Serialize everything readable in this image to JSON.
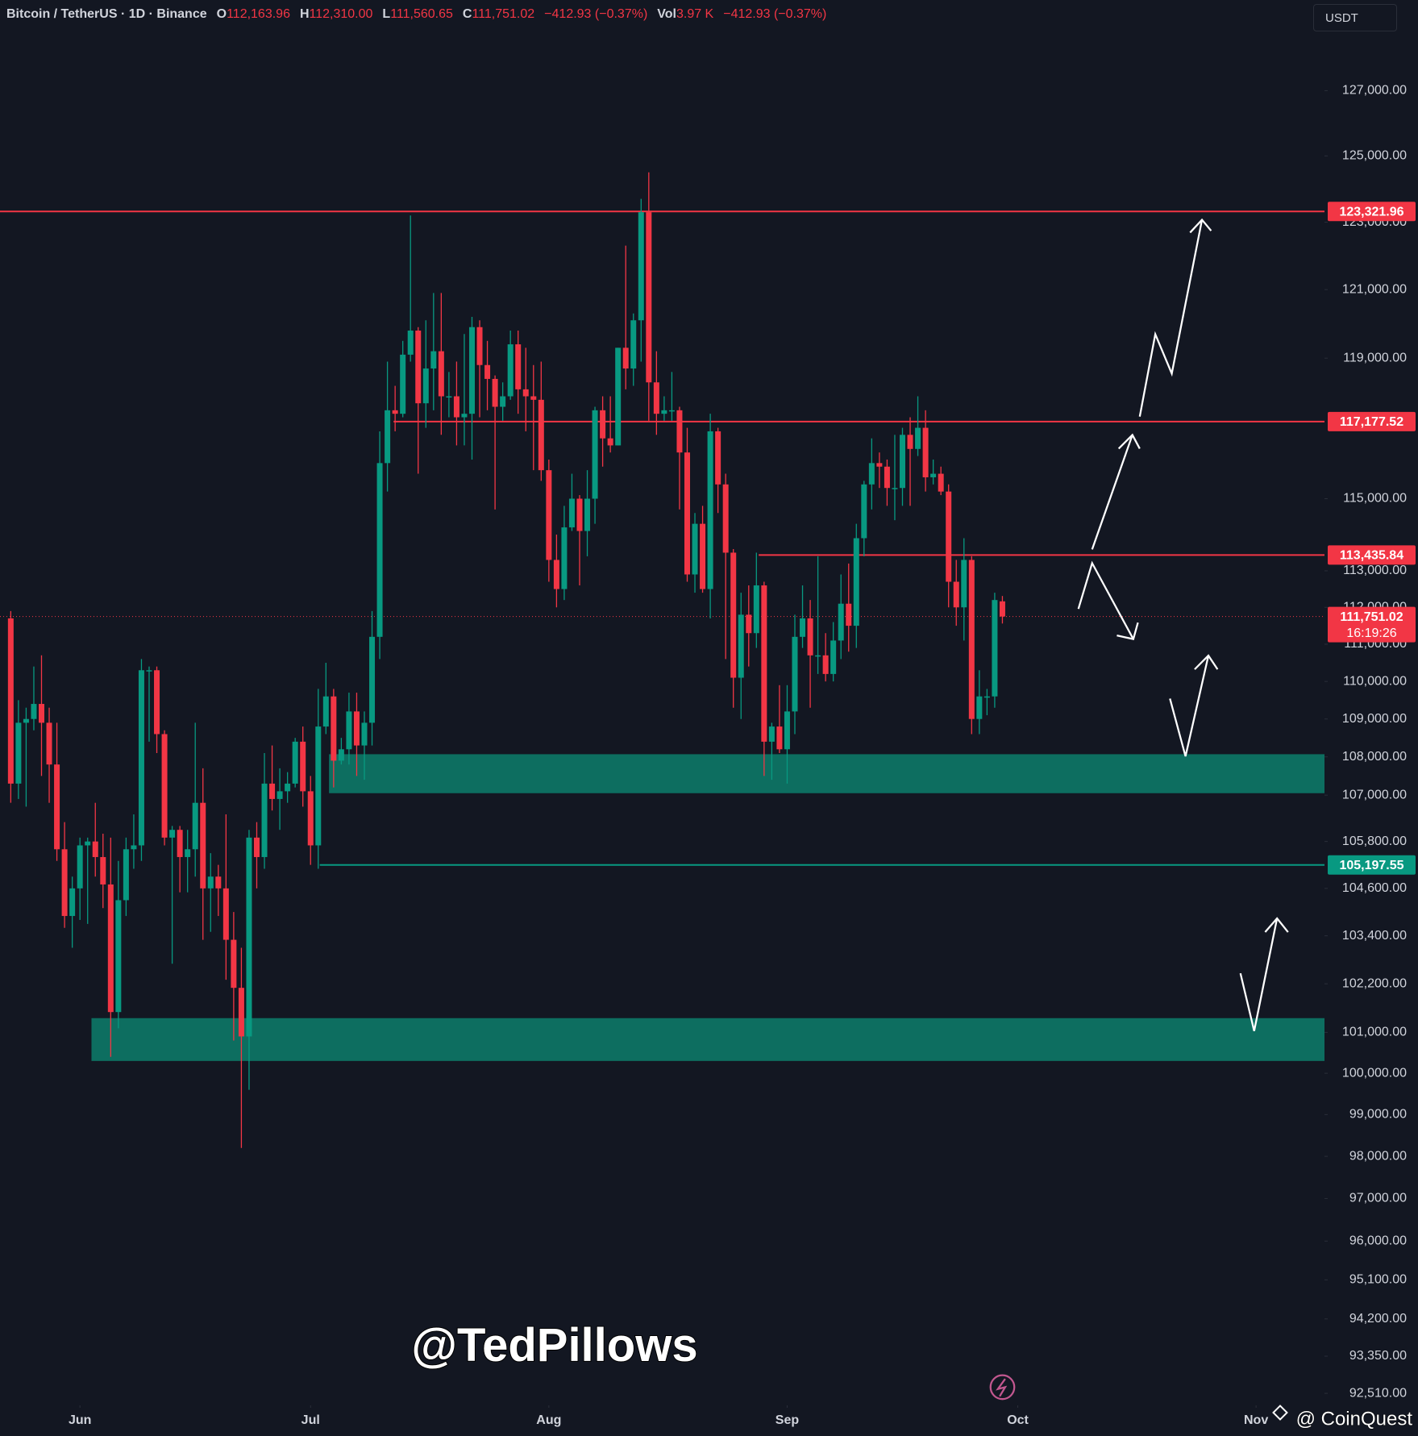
{
  "header": {
    "symbol": "Bitcoin / TetherUS · 1D · Binance",
    "ohlc": [
      {
        "key": "O",
        "value": "112,163.96"
      },
      {
        "key": "H",
        "value": "112,310.00"
      },
      {
        "key": "L",
        "value": "111,560.65"
      },
      {
        "key": "C",
        "value": "111,751.02"
      }
    ],
    "change": "−412.93 (−0.37%)",
    "vol_key": "Vol",
    "vol_value": "3.97 K",
    "vol_change": "−412.93 (−0.37%)",
    "currency": "USDT"
  },
  "watermark": "@TedPillows",
  "brand": "@ CoinQuest",
  "chart_data": {
    "type": "candlestick",
    "log_scale": true,
    "up_color": "#089981",
    "down_color": "#f23645",
    "xlim": [
      -1.4,
      170.9
    ],
    "ylim": [
      92240,
      128690
    ],
    "xticks": [
      {
        "value": 9,
        "label": "Jun"
      },
      {
        "value": 39,
        "label": "Jul"
      },
      {
        "value": 70,
        "label": "Aug"
      },
      {
        "value": 101,
        "label": "Sep"
      },
      {
        "value": 131,
        "label": "Oct"
      },
      {
        "value": 162,
        "label": "Nov"
      }
    ],
    "yticks": [
      {
        "value": 127000,
        "label": "127,000.00"
      },
      {
        "value": 125000,
        "label": "125,000.00"
      },
      {
        "value": 123000,
        "label": "123,000.00"
      },
      {
        "value": 121000,
        "label": "121,000.00"
      },
      {
        "value": 119000,
        "label": "119,000.00"
      },
      {
        "value": 115000,
        "label": "115,000.00"
      },
      {
        "value": 113000,
        "label": "113,000.00"
      },
      {
        "value": 112000,
        "label": "112,000.00"
      },
      {
        "value": 111000,
        "label": "111,000.00"
      },
      {
        "value": 110000,
        "label": "110,000.00"
      },
      {
        "value": 109000,
        "label": "109,000.00"
      },
      {
        "value": 108000,
        "label": "108,000.00"
      },
      {
        "value": 107000,
        "label": "107,000.00"
      },
      {
        "value": 105800,
        "label": "105,800.00"
      },
      {
        "value": 104600,
        "label": "104,600.00"
      },
      {
        "value": 103400,
        "label": "103,400.00"
      },
      {
        "value": 102200,
        "label": "102,200.00"
      },
      {
        "value": 101000,
        "label": "101,000.00"
      },
      {
        "value": 100000,
        "label": "100,000.00"
      },
      {
        "value": 99000,
        "label": "99,000.00"
      },
      {
        "value": 98000,
        "label": "98,000.00"
      },
      {
        "value": 97000,
        "label": "97,000.00"
      },
      {
        "value": 96000,
        "label": "96,000.00"
      },
      {
        "value": 95100,
        "label": "95,100.00"
      },
      {
        "value": 94200,
        "label": "94,200.00"
      },
      {
        "value": 93350,
        "label": "93,350.00"
      },
      {
        "value": 92510,
        "label": "92,510.00"
      }
    ],
    "zones": [
      {
        "top": 108070,
        "bottom": 107050,
        "start": 41.4,
        "color": "#0d6e60"
      },
      {
        "top": 101350,
        "bottom": 100300,
        "start": 10.5,
        "color": "#0d6e60"
      }
    ],
    "levels": [
      {
        "value": 123321.96,
        "label": "123,321.96",
        "color": "#f23645"
      },
      {
        "value": 117177.52,
        "label": "117,177.52",
        "color": "#f23645",
        "start": 49.8
      },
      {
        "value": 113435.84,
        "label": "113,435.84",
        "color": "#f23645",
        "start": 97.3
      },
      {
        "value": 105197.55,
        "label": "105,197.55",
        "color": "#089981",
        "start": 40.2
      }
    ],
    "last": {
      "value": 111751.02,
      "label": "111,751.02",
      "countdown": "16:19:26",
      "color": "#f23645"
    },
    "candles": [
      [
        111700,
        111900,
        106800,
        107300
      ],
      [
        107300,
        109500,
        106900,
        108900
      ],
      [
        108900,
        109300,
        106700,
        109000
      ],
      [
        109000,
        110400,
        108700,
        109400
      ],
      [
        109400,
        110700,
        107500,
        108900
      ],
      [
        108900,
        109300,
        106800,
        107800
      ],
      [
        107800,
        108900,
        105300,
        105600
      ],
      [
        105600,
        106300,
        103600,
        103900
      ],
      [
        103900,
        104900,
        103100,
        104600
      ],
      [
        104600,
        105900,
        103800,
        105700
      ],
      [
        105700,
        105900,
        103700,
        105800
      ],
      [
        105800,
        106800,
        104900,
        105400
      ],
      [
        105400,
        106000,
        104100,
        104700
      ],
      [
        104700,
        105900,
        100400,
        101500
      ],
      [
        101500,
        105300,
        101100,
        104300
      ],
      [
        104300,
        105900,
        103900,
        105600
      ],
      [
        105600,
        106500,
        105100,
        105700
      ],
      [
        105700,
        110600,
        105300,
        110300
      ],
      [
        110300,
        110400,
        108400,
        110300
      ],
      [
        110300,
        110400,
        108100,
        108600
      ],
      [
        108600,
        108700,
        105700,
        105900
      ],
      [
        105900,
        106200,
        102700,
        106100
      ],
      [
        106100,
        106200,
        104500,
        105400
      ],
      [
        105400,
        106100,
        104500,
        105600
      ],
      [
        105600,
        108900,
        104900,
        106800
      ],
      [
        106800,
        107700,
        103300,
        104600
      ],
      [
        104600,
        105500,
        103500,
        104900
      ],
      [
        104900,
        105200,
        103900,
        104600
      ],
      [
        104600,
        106500,
        102300,
        103300
      ],
      [
        103300,
        104000,
        100800,
        102100
      ],
      [
        102100,
        103100,
        98200,
        100900
      ],
      [
        100900,
        106100,
        99600,
        105900
      ],
      [
        105900,
        106300,
        104600,
        105400
      ],
      [
        105400,
        108100,
        105100,
        107300
      ],
      [
        107300,
        108300,
        106600,
        106900
      ],
      [
        106900,
        107700,
        106100,
        107100
      ],
      [
        107100,
        107600,
        106800,
        107300
      ],
      [
        107300,
        108500,
        107200,
        108400
      ],
      [
        108400,
        108800,
        106700,
        107100
      ],
      [
        107100,
        107500,
        105200,
        105700
      ],
      [
        105700,
        109800,
        105100,
        108800
      ],
      [
        108800,
        110500,
        108600,
        109600
      ],
      [
        109600,
        109800,
        107200,
        107900
      ],
      [
        107900,
        108500,
        107800,
        108200
      ],
      [
        108200,
        109700,
        107800,
        109200
      ],
      [
        109200,
        109700,
        107500,
        108300
      ],
      [
        108300,
        109200,
        107400,
        108900
      ],
      [
        108900,
        111900,
        108300,
        111200
      ],
      [
        111200,
        116900,
        110600,
        116000
      ],
      [
        116000,
        118900,
        115200,
        117500
      ],
      [
        117500,
        118200,
        116900,
        117400
      ],
      [
        117400,
        119500,
        117300,
        119100
      ],
      [
        119100,
        123200,
        118900,
        119800
      ],
      [
        119800,
        119900,
        115700,
        117700
      ],
      [
        117700,
        120100,
        117000,
        118700
      ],
      [
        118700,
        120900,
        117500,
        119200
      ],
      [
        119200,
        120900,
        116800,
        117900
      ],
      [
        117900,
        118600,
        117300,
        117900
      ],
      [
        117900,
        118900,
        116500,
        117300
      ],
      [
        117300,
        119700,
        116500,
        117400
      ],
      [
        117400,
        120200,
        116100,
        119900
      ],
      [
        119900,
        120100,
        117300,
        118800
      ],
      [
        118800,
        119500,
        117500,
        118400
      ],
      [
        118400,
        118500,
        114700,
        117600
      ],
      [
        117600,
        118300,
        117200,
        117900
      ],
      [
        117900,
        119800,
        117800,
        119400
      ],
      [
        119400,
        119800,
        117400,
        118100
      ],
      [
        118100,
        119300,
        116900,
        117900
      ],
      [
        117900,
        118800,
        115800,
        117800
      ],
      [
        117800,
        118900,
        115500,
        115800
      ],
      [
        115800,
        116100,
        112700,
        113300
      ],
      [
        113300,
        114000,
        112000,
        112500
      ],
      [
        112500,
        114800,
        112200,
        114200
      ],
      [
        114200,
        115700,
        114100,
        115000
      ],
      [
        115000,
        115100,
        112600,
        114100
      ],
      [
        114100,
        115800,
        113400,
        115000
      ],
      [
        115000,
        117600,
        114300,
        117500
      ],
      [
        117500,
        117900,
        115900,
        116700
      ],
      [
        116700,
        117900,
        116300,
        116500
      ],
      [
        116500,
        119300,
        116500,
        119300
      ],
      [
        119300,
        122300,
        118100,
        118700
      ],
      [
        118700,
        120300,
        118200,
        120100
      ],
      [
        120100,
        123700,
        118900,
        123300
      ],
      [
        123300,
        124500,
        117200,
        118300
      ],
      [
        118300,
        119200,
        116800,
        117400
      ],
      [
        117400,
        117900,
        117200,
        117500
      ],
      [
        117500,
        118600,
        117200,
        117500
      ],
      [
        117500,
        117600,
        114700,
        116300
      ],
      [
        116300,
        117000,
        112700,
        112900
      ],
      [
        112900,
        114600,
        112400,
        114300
      ],
      [
        114300,
        114800,
        112400,
        112500
      ],
      [
        112500,
        117400,
        111700,
        116900
      ],
      [
        116900,
        117000,
        114600,
        115400
      ],
      [
        115400,
        115700,
        110600,
        113500
      ],
      [
        113500,
        113600,
        109300,
        110100
      ],
      [
        110100,
        112400,
        109000,
        111800
      ],
      [
        111800,
        112600,
        110400,
        111300
      ],
      [
        111300,
        113500,
        110900,
        112600
      ],
      [
        112600,
        112700,
        107500,
        108400
      ],
      [
        108400,
        108900,
        107400,
        108800
      ],
      [
        108800,
        109900,
        108100,
        108200
      ],
      [
        108200,
        109900,
        107300,
        109200
      ],
      [
        109200,
        111800,
        108600,
        111200
      ],
      [
        111200,
        112600,
        110900,
        111700
      ],
      [
        111700,
        112200,
        109300,
        110700
      ],
      [
        110700,
        113400,
        110200,
        110700
      ],
      [
        110700,
        111300,
        110000,
        110200
      ],
      [
        110200,
        111600,
        110000,
        111100
      ],
      [
        111100,
        112900,
        110600,
        112100
      ],
      [
        112100,
        113200,
        110800,
        111500
      ],
      [
        111500,
        114300,
        110900,
        113900
      ],
      [
        113900,
        115500,
        113400,
        115400
      ],
      [
        115400,
        116700,
        114700,
        116000
      ],
      [
        116000,
        116300,
        115300,
        115900
      ],
      [
        115900,
        116100,
        114800,
        115300
      ],
      [
        115300,
        116800,
        114400,
        115300
      ],
      [
        115300,
        117000,
        114800,
        116800
      ],
      [
        116800,
        117300,
        114800,
        116400
      ],
      [
        116400,
        117900,
        116200,
        117000
      ],
      [
        117000,
        117500,
        115200,
        115600
      ],
      [
        115600,
        116100,
        115400,
        115700
      ],
      [
        115700,
        115900,
        115100,
        115200
      ],
      [
        115200,
        115400,
        112000,
        112700
      ],
      [
        112700,
        113300,
        111500,
        112000
      ],
      [
        112000,
        113900,
        111100,
        113300
      ],
      [
        113300,
        113400,
        108600,
        109000
      ],
      [
        109000,
        110300,
        108600,
        109600
      ],
      [
        109600,
        109800,
        109100,
        109600
      ],
      [
        109600,
        112400,
        109300,
        112200
      ],
      [
        112163.96,
        112310,
        111560.65,
        111751.02
      ]
    ]
  }
}
